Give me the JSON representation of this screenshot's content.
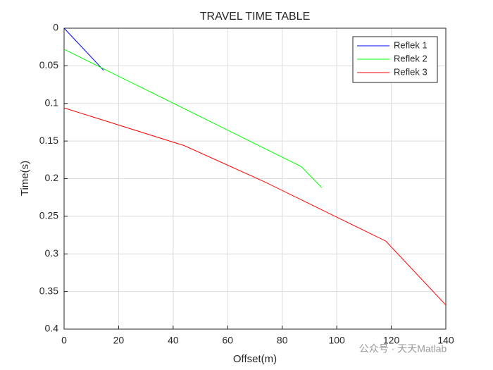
{
  "chart_data": {
    "type": "line",
    "title": "TRAVEL TIME TABLE",
    "x_label": "Offset(m)",
    "y_label": "Time(s)",
    "xlim": [
      0,
      140
    ],
    "xticks": [
      0,
      20,
      40,
      60,
      80,
      100,
      120,
      140
    ],
    "ylim": [
      0,
      0.4
    ],
    "yticks": [
      0,
      0.05,
      0.1,
      0.15,
      0.2,
      0.25,
      0.3,
      0.35,
      0.4
    ],
    "y_reversed": true,
    "grid": true,
    "legend": "top-right",
    "watermark": "公众号 · 天天Matlab",
    "series": [
      {
        "name": "Reflek 1",
        "color": "#0000ff",
        "x": [
          0,
          14.5
        ],
        "values": [
          0,
          0.056
        ]
      },
      {
        "name": "Reflek 2",
        "color": "#00ff00",
        "x": [
          0,
          87,
          94.5
        ],
        "values": [
          0.028,
          0.184,
          0.212
        ]
      },
      {
        "name": "Reflek 3",
        "color": "#ff0000",
        "x": [
          0,
          44,
          73.4,
          118,
          140
        ],
        "values": [
          0.106,
          0.156,
          0.204,
          0.283,
          0.368
        ]
      }
    ]
  }
}
